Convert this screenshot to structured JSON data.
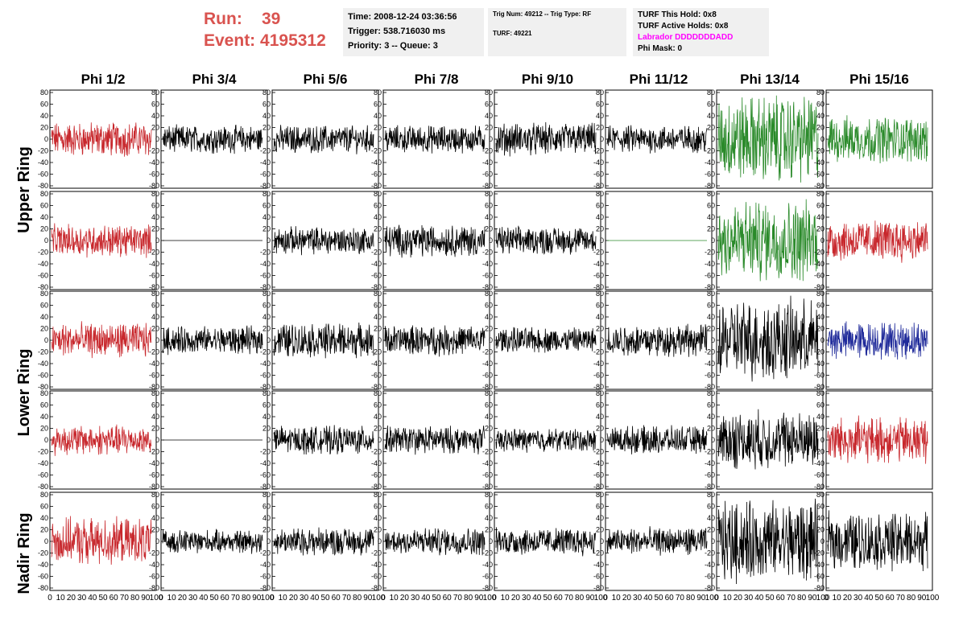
{
  "header": {
    "run_label": "Run:",
    "run_value": "39",
    "event_label": "Event:",
    "event_value": "4195312"
  },
  "info": {
    "time": "Time: 2008-12-24 03:36:56",
    "trigger": "Trigger: 538.716030 ms",
    "priority": "Priority: 3 -- Queue: 3",
    "trig_num": "Trig Num: 49212 -- Trig Type: RF",
    "turf": "TURF: 49221",
    "turf_hold": "TURF This Hold: 0x8",
    "turf_active": "TURF Active Holds: 0x8",
    "labrador": "Labrador DDDDDDDADD",
    "phi_mask": "Phi Mask: 0"
  },
  "columns": [
    "Phi 1/2",
    "Phi 3/4",
    "Phi 5/6",
    "Phi 7/8",
    "Phi 9/10",
    "Phi 11/12",
    "Phi 13/14",
    "Phi 15/16"
  ],
  "ring_labels": [
    "Upper Ring",
    "Lower Ring",
    "Nadir Ring"
  ],
  "y_ticks": [
    "80",
    "60",
    "40",
    "20",
    "0",
    "-20",
    "-40",
    "-60",
    "-80"
  ],
  "x_ticks": [
    "0",
    "10",
    "20",
    "30",
    "40",
    "50",
    "60",
    "70",
    "80",
    "90",
    "100"
  ],
  "colors": {
    "red": "#c8282d",
    "black": "#000000",
    "green": "#2a8a2a",
    "blue": "#1f2a9a",
    "title_red": "#d9534f",
    "magenta": "#ff00ff"
  },
  "panels": [
    [
      "red",
      "black",
      "black",
      "black",
      "black",
      "black",
      "green",
      "green"
    ],
    [
      "red",
      "flat-black",
      "black",
      "black",
      "black",
      "flat-green",
      "green",
      "red"
    ],
    [
      "red",
      "black",
      "black",
      "black",
      "black",
      "black",
      "black",
      "blue"
    ],
    [
      "red",
      "flat-black",
      "black",
      "black",
      "black",
      "black",
      "black",
      "red"
    ],
    [
      "red",
      "black",
      "black",
      "black",
      "black",
      "black",
      "black",
      "black"
    ]
  ],
  "amplitudes": [
    [
      15,
      12,
      12,
      12,
      14,
      12,
      38,
      20
    ],
    [
      14,
      0,
      12,
      14,
      12,
      0,
      35,
      18
    ],
    [
      15,
      12,
      15,
      13,
      11,
      14,
      35,
      16
    ],
    [
      13,
      0,
      12,
      12,
      10,
      12,
      25,
      20
    ],
    [
      20,
      10,
      12,
      12,
      12,
      12,
      35,
      25
    ]
  ]
}
